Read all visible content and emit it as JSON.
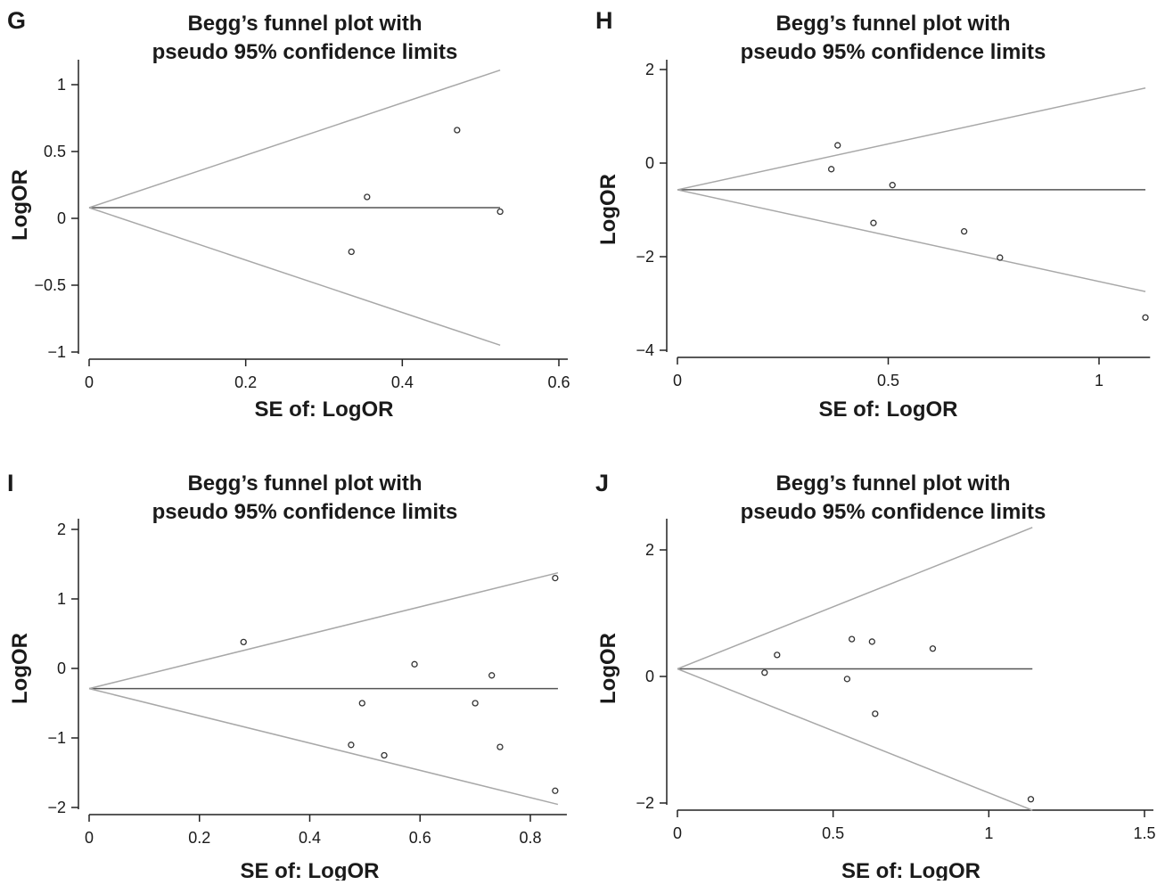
{
  "chart_data": [
    {
      "panel": "G",
      "type": "scatter",
      "title_line1": "Begg’s funnel plot with",
      "title_line2": "pseudo 95% confidence limits",
      "xlabel": "SE of: LogOR",
      "ylabel": "LogOR",
      "xlim": [
        0,
        0.6
      ],
      "ylim": [
        -1,
        1
      ],
      "xticks": [
        0,
        0.2,
        0.4,
        0.6
      ],
      "xtick_labels": [
        "0",
        "0.2",
        "0.4",
        "0.6"
      ],
      "yticks": [
        -1,
        -0.5,
        0,
        0.5,
        1
      ],
      "ytick_labels": [
        "−1",
        "−0.5",
        "0",
        "0.5",
        "1"
      ],
      "pooled_logor": 0.08,
      "funnel_max_se": 0.525,
      "points": [
        {
          "se": 0.335,
          "logor": -0.25
        },
        {
          "se": 0.355,
          "logor": 0.16
        },
        {
          "se": 0.47,
          "logor": 0.66
        },
        {
          "se": 0.525,
          "logor": 0.05
        }
      ]
    },
    {
      "panel": "H",
      "type": "scatter",
      "title_line1": "Begg’s funnel plot with",
      "title_line2": "pseudo 95% confidence limits",
      "xlabel": "SE of: LogOR",
      "ylabel": "LogOR",
      "xlim": [
        0,
        1.1
      ],
      "ylim": [
        -4,
        2
      ],
      "xticks": [
        0,
        0.5,
        1
      ],
      "xtick_labels": [
        "0",
        "0.5",
        "1"
      ],
      "yticks": [
        -4,
        -2,
        0,
        2
      ],
      "ytick_labels": [
        "−4",
        "−2",
        "0",
        "2"
      ],
      "pooled_logor": -0.57,
      "funnel_max_se": 1.11,
      "points": [
        {
          "se": 0.365,
          "logor": -0.13
        },
        {
          "se": 0.38,
          "logor": 0.38
        },
        {
          "se": 0.465,
          "logor": -1.28
        },
        {
          "se": 0.51,
          "logor": -0.47
        },
        {
          "se": 0.68,
          "logor": -1.46
        },
        {
          "se": 0.765,
          "logor": -2.02
        },
        {
          "se": 1.11,
          "logor": -3.3
        }
      ]
    },
    {
      "panel": "I",
      "type": "scatter",
      "title_line1": "Begg’s funnel plot with",
      "title_line2": "pseudo 95% confidence limits",
      "xlabel": "SE of: LogOR",
      "ylabel": "LogOR",
      "xlim": [
        0,
        0.85
      ],
      "ylim": [
        -2,
        2
      ],
      "xticks": [
        0,
        0.2,
        0.4,
        0.6,
        0.8
      ],
      "xtick_labels": [
        "0",
        "0.2",
        "0.4",
        "0.6",
        "0.8"
      ],
      "yticks": [
        -2,
        -1,
        0,
        1,
        2
      ],
      "ytick_labels": [
        "−2",
        "−1",
        "0",
        "1",
        "2"
      ],
      "pooled_logor": -0.29,
      "funnel_max_se": 0.85,
      "points": [
        {
          "se": 0.28,
          "logor": 0.38
        },
        {
          "se": 0.475,
          "logor": -1.1
        },
        {
          "se": 0.495,
          "logor": -0.5
        },
        {
          "se": 0.535,
          "logor": -1.25
        },
        {
          "se": 0.59,
          "logor": 0.06
        },
        {
          "se": 0.7,
          "logor": -0.5
        },
        {
          "se": 0.73,
          "logor": -0.1
        },
        {
          "se": 0.745,
          "logor": -1.13
        },
        {
          "se": 0.845,
          "logor": 1.3
        },
        {
          "se": 0.845,
          "logor": -1.76
        }
      ]
    },
    {
      "panel": "J",
      "type": "scatter",
      "title_line1": "Begg’s funnel plot with",
      "title_line2": "pseudo 95% confidence limits",
      "xlabel": "SE of: LogOR",
      "ylabel": "LogOR",
      "xlim": [
        0,
        1.5
      ],
      "ylim": [
        -2,
        2
      ],
      "xticks": [
        0,
        0.5,
        1,
        1.5
      ],
      "xtick_labels": [
        "0",
        "0.5",
        "1",
        "1.5"
      ],
      "yticks": [
        -2,
        0,
        2
      ],
      "ytick_labels": [
        "−2",
        "0",
        "2"
      ],
      "pooled_logor": 0.12,
      "funnel_max_se": 1.14,
      "points": [
        {
          "se": 0.28,
          "logor": 0.06
        },
        {
          "se": 0.32,
          "logor": 0.34
        },
        {
          "se": 0.545,
          "logor": -0.04
        },
        {
          "se": 0.56,
          "logor": 0.59
        },
        {
          "se": 0.625,
          "logor": 0.55
        },
        {
          "se": 0.635,
          "logor": -0.59
        },
        {
          "se": 0.82,
          "logor": 0.44
        },
        {
          "se": 1.135,
          "logor": -1.94
        }
      ]
    }
  ]
}
